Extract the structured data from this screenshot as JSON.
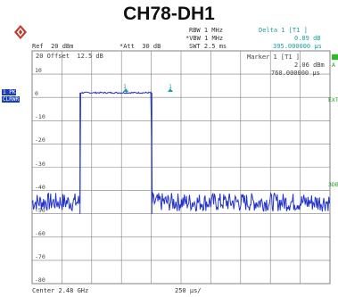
{
  "title": "CH78-DH1",
  "header": {
    "ref": "Ref  20 dBm",
    "att": "*Att  30 dB",
    "rbw": "RBW 1 MHz",
    "vbw": "*VBW 1 MHz",
    "swt": "SWT 2.5 ms",
    "delta_label": "Delta 1 [T1 ]",
    "delta_value_db": "0.89 dB",
    "delta_value_time": "395.000000 µs"
  },
  "grid_overlay": {
    "offset_label": "20 Offset  12.5 dB",
    "marker_label": "Marker 1 [T1 ]",
    "marker_level": "2.06 dBm",
    "marker_time": "760.000000 µs"
  },
  "side_labels": {
    "left_badge_1": "1 PK",
    "left_badge_2": "CLRWR",
    "right_a": "A",
    "right_ext": "EXT",
    "right_3db": "3DB"
  },
  "y_ticks": [
    "10",
    "0",
    "-10",
    "-20",
    "-30",
    "-40",
    "-50",
    "-60",
    "-70",
    "-80"
  ],
  "footer": {
    "center": "Center 2.48 GHz",
    "span": "250 µs/"
  },
  "markers": {
    "m1": "1",
    "d1": "1"
  },
  "colors": {
    "trace": "#2233cc",
    "marker": "#1aa0a0",
    "grid": "#808080",
    "brand": "#c0392b"
  },
  "chart_data": {
    "type": "line",
    "xlabel": "",
    "ylabel": "",
    "ylim": [
      -80,
      20
    ],
    "reference_level_dbm": 20,
    "series": [
      {
        "points_time_us": [
          0,
          400,
          402,
          405,
          1000,
          1005,
          1008,
          2500
        ],
        "points_level_dbm": [
          -45,
          -45,
          -45,
          2,
          2,
          -45,
          -45,
          -45
        ]
      }
    ]
  }
}
